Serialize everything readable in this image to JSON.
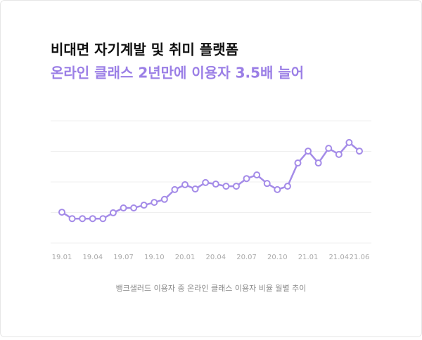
{
  "chart_data": {
    "type": "line",
    "title": "비대면 자기계발 및 취미 플랫폼",
    "subtitle": "온라인 클래스 2년만에 이용자 3.5배 늘어",
    "caption": "뱅크샐러드 이용자 중 온라인 클래스 이용자 비율 월별 추이",
    "categories": [
      "19.01",
      null,
      null,
      "19.04",
      null,
      null,
      "19.07",
      null,
      null,
      "19.10",
      null,
      null,
      "20.01",
      null,
      null,
      "20.04",
      null,
      null,
      "20.07",
      null,
      null,
      "20.10",
      null,
      null,
      "21.01",
      null,
      null,
      "21.04",
      null,
      "21.06"
    ],
    "series": [
      {
        "name": "온라인 클래스 이용자 비율",
        "color": "#a48be8",
        "values": [
          1.01,
          0.8,
          0.8,
          0.8,
          0.8,
          0.99,
          1.15,
          1.15,
          1.24,
          1.33,
          1.43,
          1.75,
          1.91,
          1.77,
          1.98,
          1.93,
          1.86,
          1.86,
          2.11,
          2.23,
          1.95,
          1.75,
          1.86,
          2.62,
          3.01,
          2.62,
          3.1,
          2.9,
          3.29,
          3.01
        ]
      }
    ],
    "ylim": [
      0,
      4
    ],
    "yticks": [
      0,
      1,
      2,
      3,
      4
    ],
    "grid": true
  }
}
